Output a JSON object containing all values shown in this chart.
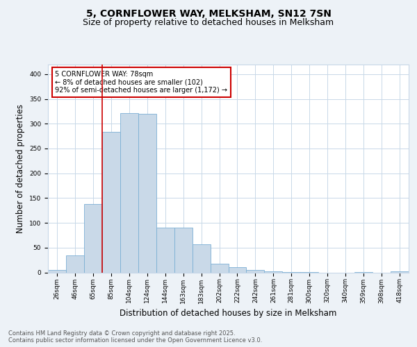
{
  "title1": "5, CORNFLOWER WAY, MELKSHAM, SN12 7SN",
  "title2": "Size of property relative to detached houses in Melksham",
  "xlabel": "Distribution of detached houses by size in Melksham",
  "ylabel": "Number of detached properties",
  "categories": [
    "26sqm",
    "46sqm",
    "65sqm",
    "85sqm",
    "104sqm",
    "124sqm",
    "144sqm",
    "163sqm",
    "183sqm",
    "202sqm",
    "222sqm",
    "242sqm",
    "261sqm",
    "281sqm",
    "300sqm",
    "320sqm",
    "340sqm",
    "359sqm",
    "398sqm",
    "418sqm"
  ],
  "values": [
    5,
    35,
    138,
    283,
    322,
    320,
    90,
    90,
    57,
    18,
    10,
    5,
    2,
    1,
    1,
    0,
    0,
    1,
    0,
    2
  ],
  "bar_color": "#c9d9e8",
  "bar_edge_color": "#7bafd4",
  "property_line_color": "#cc0000",
  "annotation_text": "5 CORNFLOWER WAY: 78sqm\n← 8% of detached houses are smaller (102)\n92% of semi-detached houses are larger (1,172) →",
  "annotation_box_color": "#cc0000",
  "ylim": [
    0,
    420
  ],
  "yticks": [
    0,
    50,
    100,
    150,
    200,
    250,
    300,
    350,
    400
  ],
  "footer_text": "Contains HM Land Registry data © Crown copyright and database right 2025.\nContains public sector information licensed under the Open Government Licence v3.0.",
  "bg_color": "#edf2f7",
  "plot_bg_color": "#ffffff",
  "grid_color": "#c8d8e8",
  "title_fontsize": 10,
  "subtitle_fontsize": 9,
  "tick_fontsize": 6.5,
  "label_fontsize": 8.5,
  "footer_fontsize": 6
}
